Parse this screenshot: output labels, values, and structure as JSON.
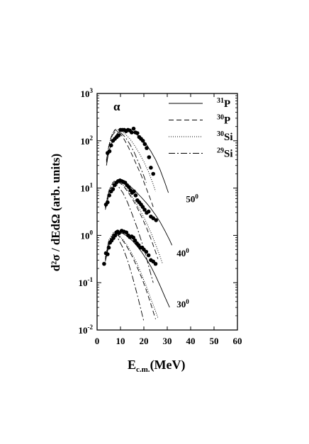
{
  "chart_data": {
    "type": "scatter",
    "title": "",
    "particle_label": "α",
    "ylabel": "d²σ / dEdΩ  (arb. units)",
    "xlabel_main": "E",
    "xlabel_sub": "c.m.",
    "xlabel_unit": "(MeV)",
    "xlim": [
      0,
      60
    ],
    "ylim": [
      0.01,
      1000
    ],
    "yscale": "log",
    "xticks": [
      "0",
      "10",
      "20",
      "30",
      "40",
      "50",
      "60"
    ],
    "yticks": [
      {
        "base": "10",
        "exp": "-2",
        "v": 0.01
      },
      {
        "base": "10",
        "exp": "-1",
        "v": 0.1
      },
      {
        "base": "10",
        "exp": "0",
        "v": 1
      },
      {
        "base": "10",
        "exp": "1",
        "v": 10
      },
      {
        "base": "10",
        "exp": "2",
        "v": 100
      },
      {
        "base": "10",
        "exp": "3",
        "v": 1000
      }
    ],
    "legend_position": "top-right",
    "legend": [
      {
        "mass": "31",
        "element": "P",
        "style": "solid"
      },
      {
        "mass": "30",
        "element": "P",
        "style": "dashed"
      },
      {
        "mass": "30",
        "element": "Si",
        "style": "dotted"
      },
      {
        "mass": "29",
        "element": "Si",
        "style": "dashdot"
      }
    ],
    "angle_labels": [
      {
        "num": "50",
        "sup": "0",
        "x": 38,
        "y": 5
      },
      {
        "num": "40",
        "sup": "0",
        "x": 34,
        "y": 0.36
      },
      {
        "num": "30",
        "sup": "0",
        "x": 34,
        "y": 0.03
      }
    ],
    "groups": [
      {
        "angle": "30",
        "data": [
          [
            3,
            0.25
          ],
          [
            3.8,
            0.42
          ],
          [
            4.5,
            0.4
          ],
          [
            5,
            0.55
          ],
          [
            5.5,
            0.7
          ],
          [
            6.2,
            0.78
          ],
          [
            7,
            0.88
          ],
          [
            7.7,
            1.0
          ],
          [
            8.2,
            1.15
          ],
          [
            8.8,
            1.2
          ],
          [
            9.4,
            1.12
          ],
          [
            10.5,
            1.25
          ],
          [
            11.5,
            1.2
          ],
          [
            12.5,
            1.15
          ],
          [
            13.3,
            1.0
          ],
          [
            14,
            0.92
          ],
          [
            14.8,
            0.95
          ],
          [
            15.5,
            0.9
          ],
          [
            16.2,
            0.78
          ],
          [
            17,
            0.68
          ],
          [
            17.8,
            0.62
          ],
          [
            18.5,
            0.55
          ],
          [
            19.3,
            0.55
          ],
          [
            20,
            0.5
          ],
          [
            21,
            0.45
          ],
          [
            22,
            0.38
          ],
          [
            23,
            0.3
          ],
          [
            24,
            0.28
          ],
          [
            25,
            0.25
          ]
        ],
        "curves": {
          "solid": [
            [
              3.5,
              0.28
            ],
            [
              5,
              0.6
            ],
            [
              7,
              0.95
            ],
            [
              9,
              1.15
            ],
            [
              11,
              1.1
            ],
            [
              13,
              0.95
            ],
            [
              15,
              0.78
            ],
            [
              17,
              0.6
            ],
            [
              19,
              0.45
            ],
            [
              21,
              0.32
            ],
            [
              23,
              0.22
            ],
            [
              25,
              0.14
            ],
            [
              27,
              0.085
            ],
            [
              29,
              0.05
            ],
            [
              31,
              0.03
            ]
          ],
          "dashed": [
            [
              3.5,
              0.3
            ],
            [
              5,
              0.7
            ],
            [
              7,
              1.1
            ],
            [
              9,
              1.0
            ],
            [
              11,
              0.78
            ],
            [
              13,
              0.55
            ],
            [
              15,
              0.36
            ],
            [
              17,
              0.22
            ],
            [
              19,
              0.13
            ],
            [
              21,
              0.07
            ],
            [
              23,
              0.035
            ],
            [
              25,
              0.017
            ]
          ],
          "dotted": [
            [
              3.5,
              0.35
            ],
            [
              5,
              0.8
            ],
            [
              7,
              1.15
            ],
            [
              9,
              1.05
            ],
            [
              11,
              0.82
            ],
            [
              13,
              0.6
            ],
            [
              15,
              0.4
            ],
            [
              17,
              0.26
            ],
            [
              19,
              0.15
            ],
            [
              21,
              0.085
            ],
            [
              23,
              0.045
            ],
            [
              25,
              0.025
            ],
            [
              26,
              0.018
            ]
          ],
          "dashdot": [
            [
              3.5,
              0.32
            ],
            [
              5,
              0.75
            ],
            [
              7,
              1.05
            ],
            [
              9,
              0.85
            ],
            [
              11,
              0.55
            ],
            [
              13,
              0.3
            ],
            [
              15,
              0.14
            ],
            [
              17,
              0.06
            ],
            [
              19,
              0.024
            ],
            [
              20,
              0.015
            ]
          ]
        }
      },
      {
        "angle": "40",
        "data": [
          [
            3.8,
            4.5
          ],
          [
            4.5,
            5.0
          ],
          [
            5.2,
            7.0
          ],
          [
            6,
            8.5
          ],
          [
            6.8,
            9.5
          ],
          [
            7.5,
            11.5
          ],
          [
            8.2,
            13
          ],
          [
            9,
            14
          ],
          [
            9.8,
            14.5
          ],
          [
            10.5,
            14
          ],
          [
            11.2,
            13.5
          ],
          [
            12,
            13
          ],
          [
            12.8,
            11.5
          ],
          [
            13.6,
            10.5
          ],
          [
            14.3,
            9.0
          ],
          [
            15,
            8.0
          ],
          [
            15.8,
            8.5
          ],
          [
            16.5,
            7.0
          ],
          [
            17.2,
            5.5
          ],
          [
            18,
            5.0
          ],
          [
            18.8,
            4.5
          ],
          [
            19.5,
            4.0
          ],
          [
            20.3,
            3.5
          ],
          [
            21.2,
            3.0
          ],
          [
            22,
            3.2
          ],
          [
            23,
            2.5
          ],
          [
            24,
            2.3
          ],
          [
            25.2,
            2.1
          ]
        ],
        "curves": {
          "solid": [
            [
              3.5,
              3.5
            ],
            [
              5,
              7
            ],
            [
              7,
              11
            ],
            [
              9,
              13.5
            ],
            [
              11,
              13.5
            ],
            [
              13,
              12
            ],
            [
              15,
              10
            ],
            [
              17,
              8
            ],
            [
              19,
              6.3
            ],
            [
              21,
              4.9
            ],
            [
              23,
              3.7
            ],
            [
              25,
              2.7
            ],
            [
              27,
              1.9
            ],
            [
              29,
              1.25
            ],
            [
              31,
              0.8
            ],
            [
              32,
              0.62
            ]
          ],
          "dashed": [
            [
              3.5,
              4
            ],
            [
              5,
              8.5
            ],
            [
              7,
              13.5
            ],
            [
              9,
              13.5
            ],
            [
              11,
              11.5
            ],
            [
              13,
              8.5
            ],
            [
              15,
              6
            ],
            [
              17,
              4
            ],
            [
              19,
              2.5
            ],
            [
              21,
              1.5
            ],
            [
              23,
              0.85
            ],
            [
              25,
              0.45
            ],
            [
              26,
              0.32
            ]
          ],
          "dotted": [
            [
              3.5,
              4
            ],
            [
              5,
              9
            ],
            [
              7,
              14
            ],
            [
              9,
              14
            ],
            [
              11,
              12
            ],
            [
              13,
              9
            ],
            [
              15,
              6.5
            ],
            [
              17,
              4.5
            ],
            [
              19,
              3
            ],
            [
              21,
              1.9
            ],
            [
              23,
              1.15
            ],
            [
              25,
              0.65
            ],
            [
              27,
              0.35
            ],
            [
              28,
              0.25
            ]
          ],
          "dashdot": [
            [
              3.5,
              3.8
            ],
            [
              5,
              8
            ],
            [
              7,
              12.5
            ],
            [
              9,
              11
            ],
            [
              11,
              8
            ],
            [
              13,
              5
            ],
            [
              15,
              2.8
            ],
            [
              17,
              1.5
            ],
            [
              19,
              0.75
            ],
            [
              21,
              0.35
            ],
            [
              23,
              0.15
            ],
            [
              24,
              0.1
            ]
          ]
        }
      },
      {
        "angle": "50",
        "data": [
          [
            4.5,
            55
          ],
          [
            5.3,
            60
          ],
          [
            6,
            80
          ],
          [
            6.8,
            100
          ],
          [
            7.6,
            110
          ],
          [
            8.4,
            120
          ],
          [
            9.2,
            130
          ],
          [
            10,
            170
          ],
          [
            10.8,
            170
          ],
          [
            11.6,
            170
          ],
          [
            12.4,
            160
          ],
          [
            13.2,
            170
          ],
          [
            14,
            165
          ],
          [
            14.8,
            150
          ],
          [
            15.6,
            180
          ],
          [
            16.4,
            150
          ],
          [
            17.2,
            145
          ],
          [
            18,
            120
          ],
          [
            18.8,
            110
          ],
          [
            19.6,
            100
          ],
          [
            20.4,
            85
          ],
          [
            21.2,
            70
          ],
          [
            22.2,
            45
          ],
          [
            23,
            27
          ],
          [
            24,
            20
          ]
        ],
        "curves": {
          "solid": [
            [
              4,
              30
            ],
            [
              5,
              60
            ],
            [
              7,
              110
            ],
            [
              9,
              150
            ],
            [
              11,
              170
            ],
            [
              13,
              168
            ],
            [
              15,
              155
            ],
            [
              17,
              135
            ],
            [
              19,
              110
            ],
            [
              21,
              85
            ],
            [
              23,
              60
            ],
            [
              25,
              40
            ],
            [
              27,
              24
            ],
            [
              29,
              13
            ],
            [
              30.5,
              8
            ]
          ],
          "dashed": [
            [
              4,
              35
            ],
            [
              5,
              75
            ],
            [
              6,
              120
            ],
            [
              7.5,
              170
            ],
            [
              9,
              160
            ],
            [
              11,
              120
            ],
            [
              13,
              80
            ],
            [
              15,
              50
            ],
            [
              17,
              30
            ],
            [
              19,
              18
            ],
            [
              21,
              10
            ],
            [
              23,
              5.5
            ],
            [
              24,
              4
            ]
          ],
          "dotted": [
            [
              4,
              40
            ],
            [
              5,
              80
            ],
            [
              6.5,
              140
            ],
            [
              8,
              175
            ],
            [
              10,
              165
            ],
            [
              12,
              140
            ],
            [
              14,
              110
            ],
            [
              16,
              80
            ],
            [
              18,
              55
            ],
            [
              20,
              36
            ],
            [
              22,
              22
            ],
            [
              24,
              12
            ],
            [
              25,
              8.5
            ]
          ],
          "dashdot": [
            [
              4,
              38
            ],
            [
              5,
              75
            ],
            [
              6.5,
              130
            ],
            [
              8,
              160
            ],
            [
              10,
              150
            ],
            [
              12,
              120
            ],
            [
              14,
              85
            ],
            [
              16,
              55
            ],
            [
              18,
              32
            ],
            [
              20,
              18
            ],
            [
              21,
              13
            ]
          ]
        }
      }
    ]
  }
}
